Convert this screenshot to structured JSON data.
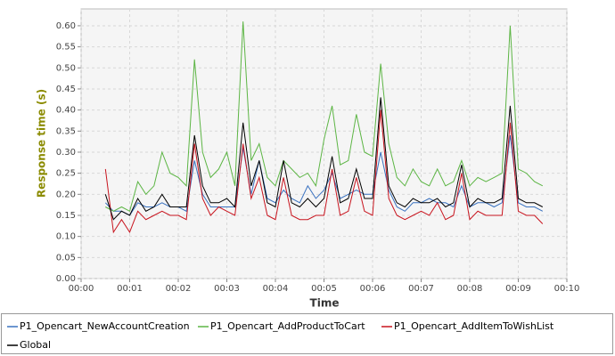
{
  "chart_data": {
    "type": "line",
    "xlabel": "Time",
    "ylabel": "Response time (s)",
    "grid": true,
    "legend": "bottom",
    "xlim": [
      0,
      610
    ],
    "ylim": [
      0,
      0.64
    ],
    "xticks": [
      {
        "value": 0,
        "label": "00:00"
      },
      {
        "value": 60,
        "label": "00:01"
      },
      {
        "value": 120,
        "label": "00:02"
      },
      {
        "value": 180,
        "label": "00:03"
      },
      {
        "value": 240,
        "label": "00:04"
      },
      {
        "value": 300,
        "label": "00:05"
      },
      {
        "value": 360,
        "label": "00:06"
      },
      {
        "value": 420,
        "label": "00:07"
      },
      {
        "value": 480,
        "label": "00:08"
      },
      {
        "value": 540,
        "label": "00:09"
      },
      {
        "value": 600,
        "label": "00:10"
      }
    ],
    "yticks": [
      {
        "value": 0,
        "label": "0.00"
      },
      0.05,
      {
        "value": 0.1,
        "label": "0.10"
      },
      0.15,
      {
        "value": 0.2,
        "label": "0.20"
      },
      0.25,
      {
        "value": 0.3,
        "label": "0.30"
      },
      0.35,
      {
        "value": 0.4,
        "label": "0.40"
      },
      0.45,
      {
        "value": 0.5,
        "label": "0.50"
      },
      0.55,
      {
        "value": 0.6,
        "label": "0.60"
      }
    ],
    "x": [
      30,
      40,
      50,
      60,
      70,
      80,
      90,
      100,
      110,
      120,
      130,
      140,
      150,
      160,
      170,
      180,
      190,
      200,
      210,
      220,
      230,
      240,
      250,
      260,
      270,
      280,
      290,
      300,
      310,
      320,
      330,
      340,
      350,
      360,
      370,
      380,
      390,
      400,
      410,
      420,
      430,
      440,
      450,
      460,
      470,
      480,
      490,
      500,
      510,
      520,
      530,
      540,
      550,
      560,
      570
    ],
    "series": [
      {
        "name": "P1_Opencart_NewAccountCreation",
        "color": "#3a72c0",
        "values": [
          0.18,
          0.16,
          0.16,
          0.15,
          0.18,
          0.17,
          0.17,
          0.18,
          0.17,
          0.17,
          0.16,
          0.28,
          0.2,
          0.17,
          0.17,
          0.17,
          0.17,
          0.31,
          0.2,
          0.28,
          0.19,
          0.18,
          0.21,
          0.19,
          0.18,
          0.22,
          0.19,
          0.21,
          0.25,
          0.19,
          0.2,
          0.21,
          0.2,
          0.2,
          0.3,
          0.21,
          0.17,
          0.16,
          0.18,
          0.18,
          0.19,
          0.18,
          0.18,
          0.17,
          0.22,
          0.17,
          0.18,
          0.18,
          0.17,
          0.18,
          0.34,
          0.18,
          0.17,
          0.17,
          0.16
        ]
      },
      {
        "name": "P1_Opencart_AddProductToCart",
        "color": "#5cb544",
        "values": [
          0.17,
          0.16,
          0.17,
          0.16,
          0.23,
          0.2,
          0.22,
          0.3,
          0.25,
          0.24,
          0.22,
          0.52,
          0.3,
          0.24,
          0.26,
          0.3,
          0.22,
          0.61,
          0.28,
          0.32,
          0.24,
          0.22,
          0.28,
          0.26,
          0.24,
          0.25,
          0.22,
          0.33,
          0.41,
          0.27,
          0.28,
          0.39,
          0.3,
          0.29,
          0.51,
          0.32,
          0.24,
          0.22,
          0.26,
          0.23,
          0.22,
          0.26,
          0.22,
          0.23,
          0.28,
          0.22,
          0.24,
          0.23,
          0.24,
          0.25,
          0.6,
          0.26,
          0.25,
          0.23,
          0.22
        ]
      },
      {
        "name": "P1_Opencart_AddItemToWishList",
        "color": "#c8141e",
        "values": [
          0.26,
          0.11,
          0.14,
          0.11,
          0.16,
          0.14,
          0.15,
          0.16,
          0.15,
          0.15,
          0.14,
          0.32,
          0.19,
          0.15,
          0.17,
          0.16,
          0.15,
          0.32,
          0.19,
          0.24,
          0.15,
          0.14,
          0.24,
          0.15,
          0.14,
          0.14,
          0.15,
          0.15,
          0.26,
          0.15,
          0.16,
          0.24,
          0.16,
          0.15,
          0.4,
          0.19,
          0.15,
          0.14,
          0.15,
          0.16,
          0.15,
          0.18,
          0.14,
          0.15,
          0.25,
          0.14,
          0.16,
          0.15,
          0.15,
          0.15,
          0.37,
          0.16,
          0.15,
          0.15,
          0.13
        ]
      },
      {
        "name": "Global",
        "color": "#000000",
        "values": [
          0.2,
          0.14,
          0.16,
          0.15,
          0.19,
          0.16,
          0.17,
          0.2,
          0.17,
          0.17,
          0.17,
          0.34,
          0.22,
          0.18,
          0.18,
          0.19,
          0.17,
          0.37,
          0.22,
          0.28,
          0.18,
          0.17,
          0.28,
          0.18,
          0.17,
          0.19,
          0.17,
          0.19,
          0.29,
          0.18,
          0.19,
          0.26,
          0.19,
          0.19,
          0.43,
          0.22,
          0.18,
          0.17,
          0.19,
          0.18,
          0.18,
          0.19,
          0.17,
          0.18,
          0.27,
          0.17,
          0.19,
          0.18,
          0.18,
          0.19,
          0.41,
          0.19,
          0.18,
          0.18,
          0.17
        ]
      }
    ]
  }
}
